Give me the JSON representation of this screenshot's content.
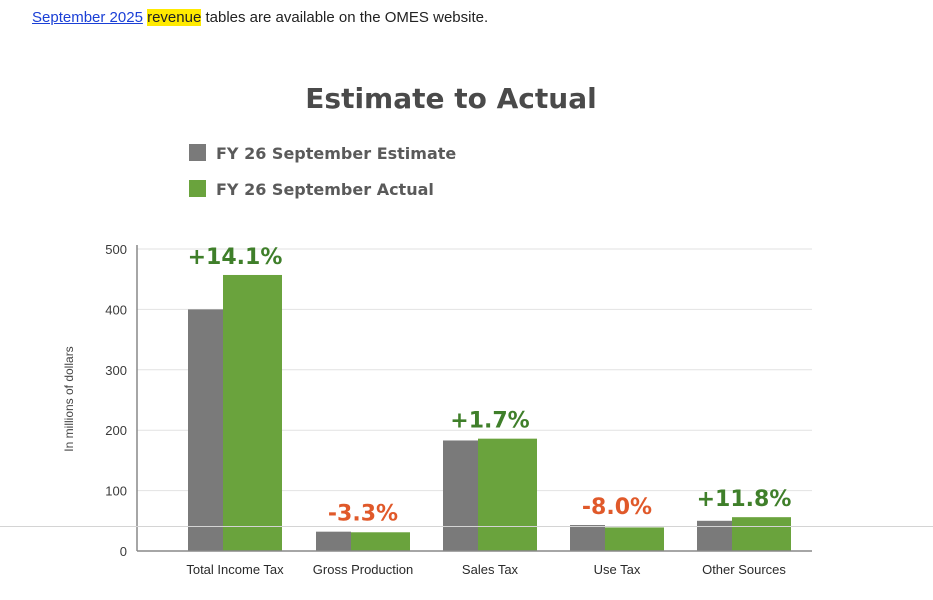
{
  "intro": {
    "link_text": "September 2025",
    "highlight_text": "revenue",
    "rest_text": " tables are available on the OMES website."
  },
  "colors": {
    "estimate": "#7a7a7a",
    "actual": "#6aa33d",
    "positive": "#3f7f2a",
    "negative": "#e0592a",
    "gridline": "#e2e2e2",
    "axis": "#888888"
  },
  "chart_data": {
    "type": "bar",
    "title": "Estimate to Actual",
    "ylabel": "In millions of dollars",
    "xlabel": "",
    "ylim": [
      0,
      500
    ],
    "yticks": [
      0,
      100,
      200,
      300,
      400,
      500
    ],
    "grid": true,
    "legend_position": "top-left",
    "categories": [
      "Total Income Tax",
      "Gross Production",
      "Sales Tax",
      "Use Tax",
      "Other Sources"
    ],
    "series": [
      {
        "name": "FY 26 September Estimate",
        "values": [
          400,
          32,
          183,
          43,
          50
        ]
      },
      {
        "name": "FY 26 September Actual",
        "values": [
          457,
          31,
          186,
          39,
          56
        ]
      }
    ],
    "annotations": [
      {
        "label": "+14.1%",
        "sign": "positive"
      },
      {
        "label": "-3.3%",
        "sign": "negative"
      },
      {
        "label": "+1.7%",
        "sign": "positive"
      },
      {
        "label": "-8.0%",
        "sign": "negative"
      },
      {
        "label": "+11.8%",
        "sign": "positive"
      }
    ]
  }
}
